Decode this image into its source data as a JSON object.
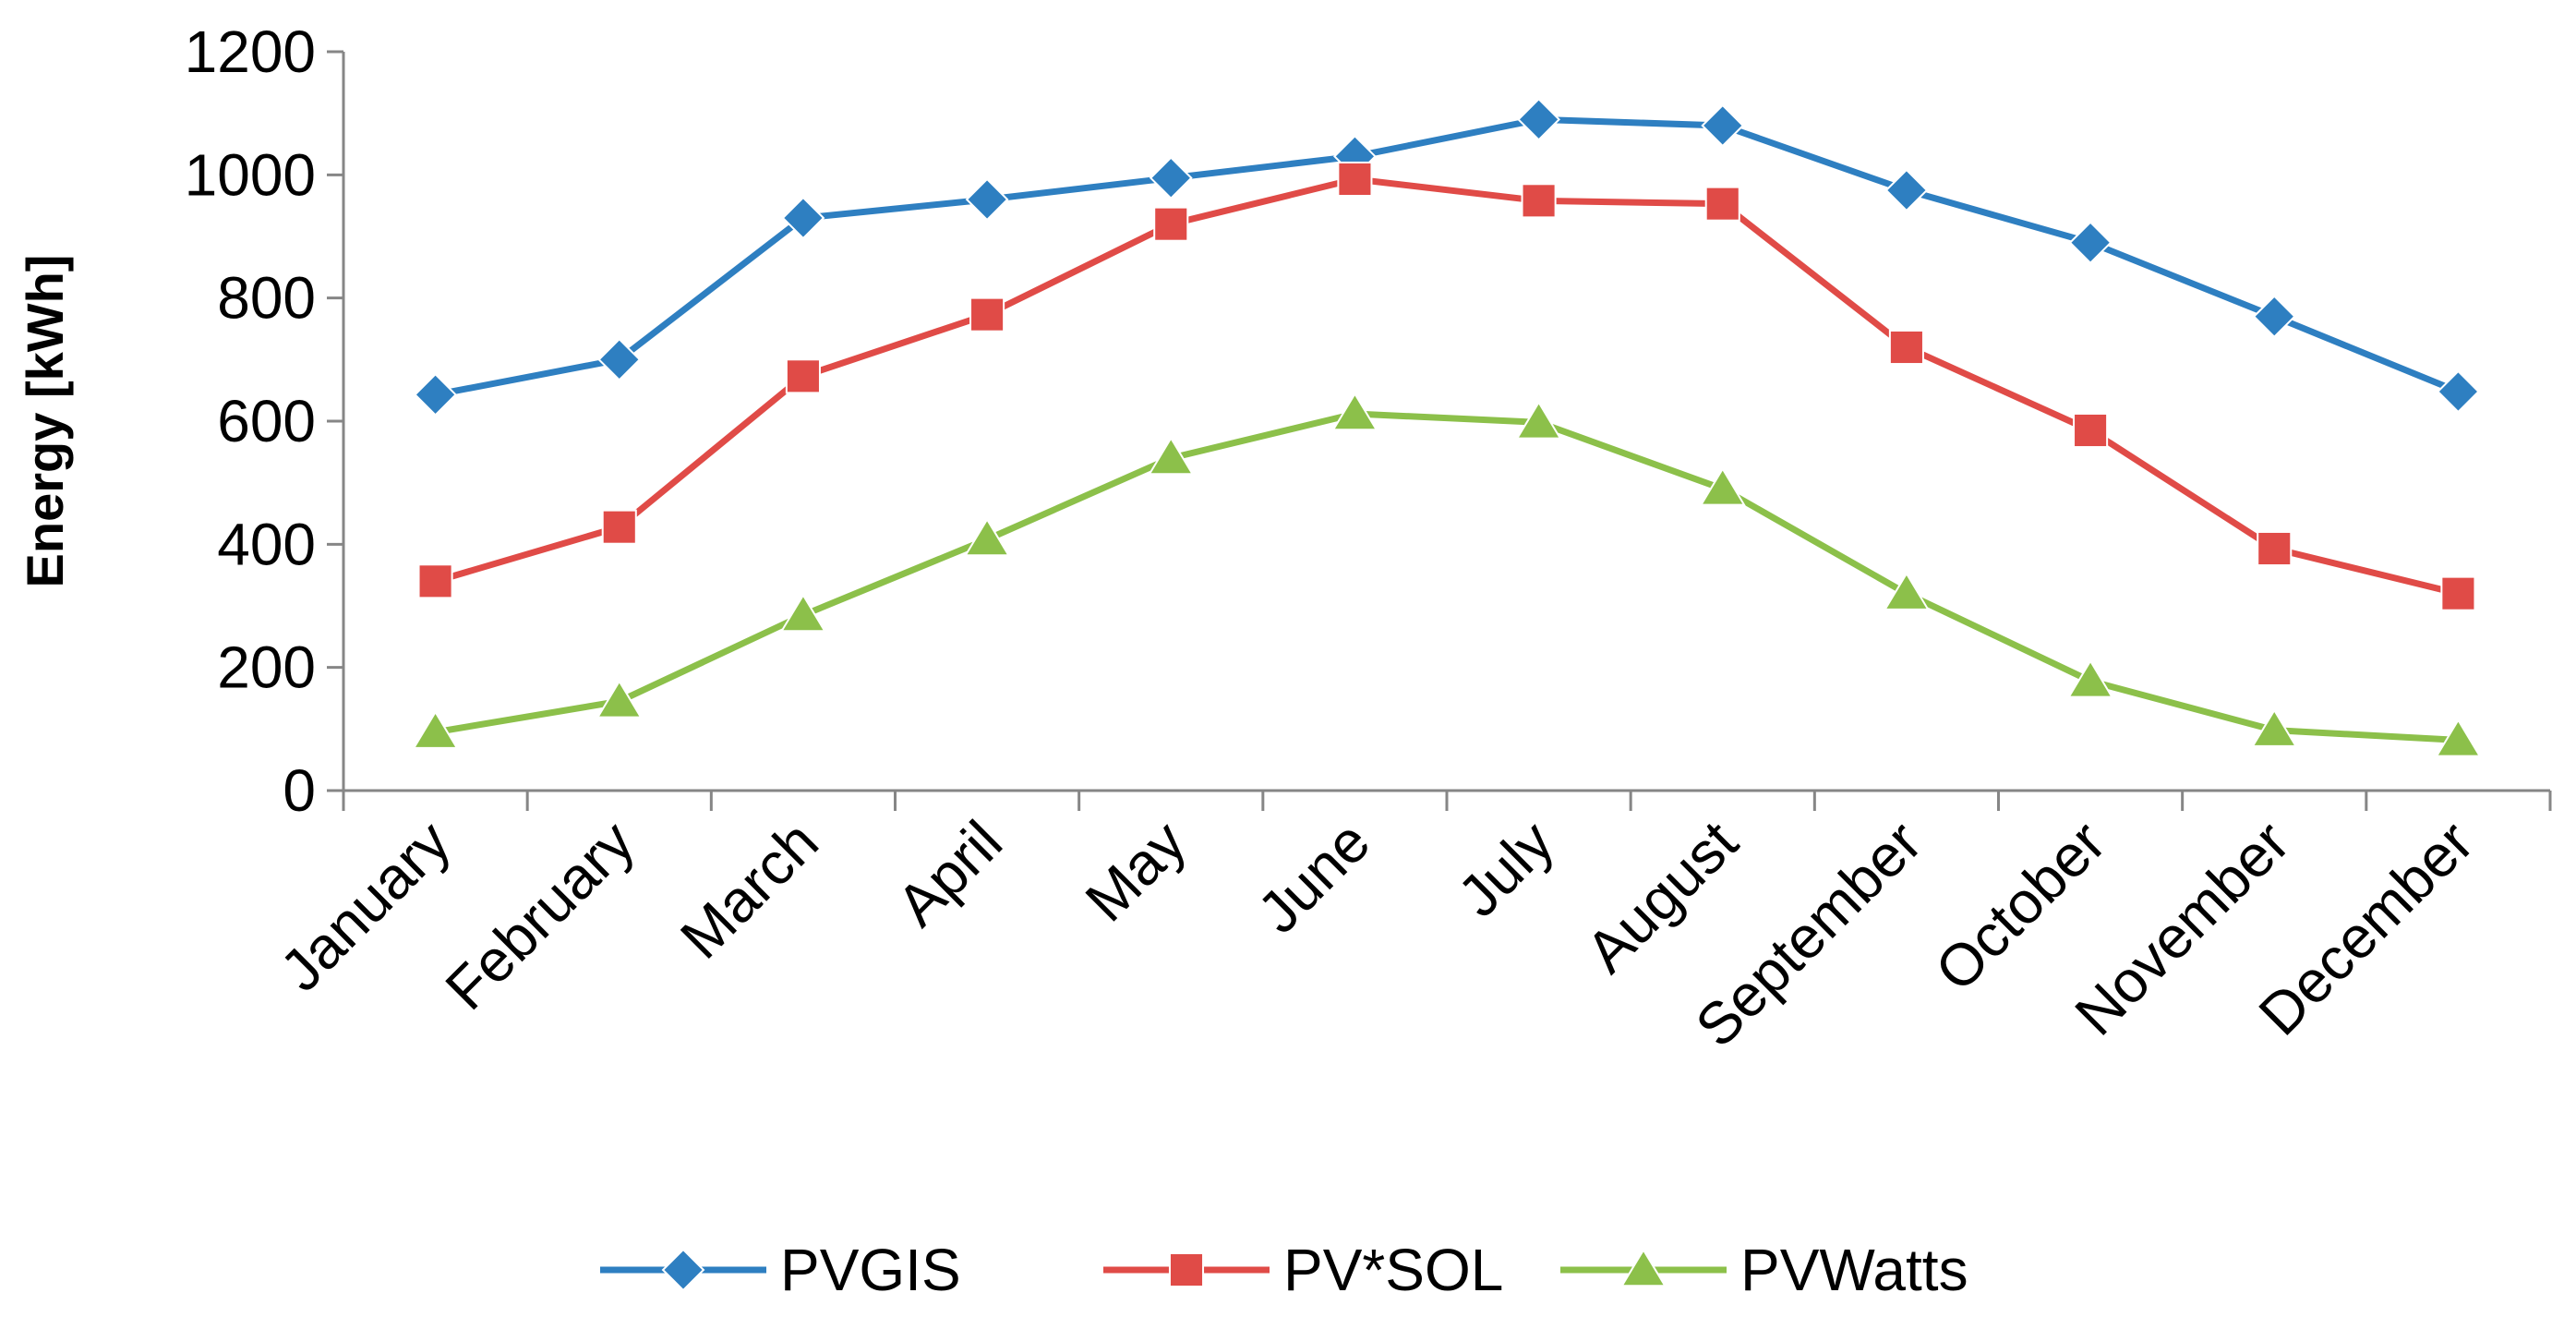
{
  "chart_data": {
    "type": "line",
    "title": "",
    "xlabel": "",
    "ylabel": "Energy [kWh]",
    "ylim": [
      0,
      1200
    ],
    "yticks": [
      0,
      200,
      400,
      600,
      800,
      1000,
      1200
    ],
    "grid": false,
    "legend_position": "bottom",
    "categories": [
      "January",
      "February",
      "March",
      "April",
      "May",
      "June",
      "July",
      "August",
      "September",
      "October",
      "November",
      "December"
    ],
    "series": [
      {
        "name": "PVGIS",
        "color": "#2E7FC1",
        "marker": "diamond",
        "values": [
          643,
          700,
          930,
          960,
          995,
          1030,
          1090,
          1080,
          975,
          890,
          770,
          648
        ]
      },
      {
        "name": "PV*SOL",
        "color": "#E04B47",
        "marker": "square",
        "values": [
          340,
          428,
          673,
          773,
          920,
          993,
          958,
          953,
          720,
          585,
          393,
          320
        ]
      },
      {
        "name": "PVWatts",
        "color": "#8CC04A",
        "marker": "triangle",
        "values": [
          95,
          145,
          285,
          408,
          540,
          612,
          598,
          490,
          320,
          178,
          98,
          82
        ]
      }
    ]
  }
}
